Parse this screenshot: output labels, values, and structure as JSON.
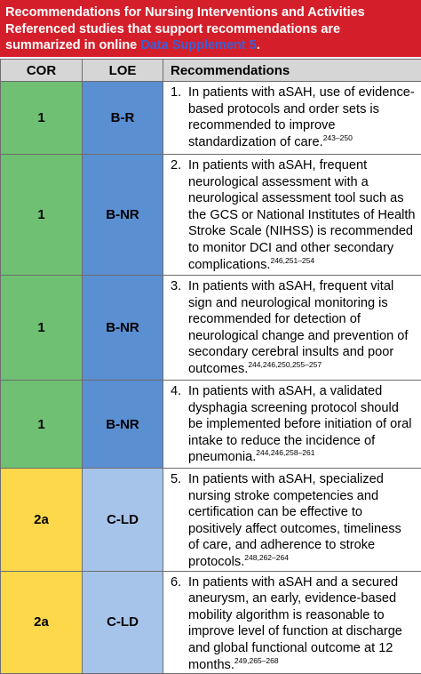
{
  "header": {
    "title": "Recommendations for Nursing Interventions and Activities",
    "subtitle": "Referenced studies that support recommendations are summarized in online",
    "link": "Data Supplement 5",
    "subtitle_end": "."
  },
  "table": {
    "columns": [
      "COR",
      "LOE",
      "Recommendations"
    ],
    "rows": [
      {
        "cor": "1",
        "loe": "B-R",
        "number": "1.",
        "text": "In patients with aSAH, use of evidence-based protocols and order sets is recommended to improve standardization of care.",
        "refs": "243–250"
      },
      {
        "cor": "1",
        "loe": "B-NR",
        "number": "2.",
        "text": "In patients with aSAH, frequent neurological assessment with a neurological assessment tool such as the GCS or National Institutes of Health Stroke Scale (NIHSS) is recommended to monitor DCI and other secondary complications.",
        "refs": "246,251–254"
      },
      {
        "cor": "1",
        "loe": "B-NR",
        "number": "3.",
        "text": "In patients with aSAH, frequent vital sign and neurological monitoring is recommended for detection of neurological change and prevention of secondary cerebral insults and poor outcomes.",
        "refs": "244,246,250,255–257"
      },
      {
        "cor": "1",
        "loe": "B-NR",
        "number": "4.",
        "text": "In patients with aSAH, a validated dysphagia screening protocol should be implemented before initiation of oral intake to reduce the incidence of pneumonia.",
        "refs": "244,246,258–261"
      },
      {
        "cor": "2a",
        "loe": "C-LD",
        "number": "5.",
        "text": "In patients with aSAH, specialized nursing stroke competencies and certification can be effective to positively affect outcomes, timeliness of care, and adherence to stroke protocols.",
        "refs": "248,262–264"
      },
      {
        "cor": "2a",
        "loe": "C-LD",
        "number": "6.",
        "text": "In patients with aSAH and a secured aneurysm, an early, evidence-based mobility algorithm is reasonable to improve level of function at discharge and global functional outcome at 12 months.",
        "refs": "249,265–268"
      }
    ]
  }
}
